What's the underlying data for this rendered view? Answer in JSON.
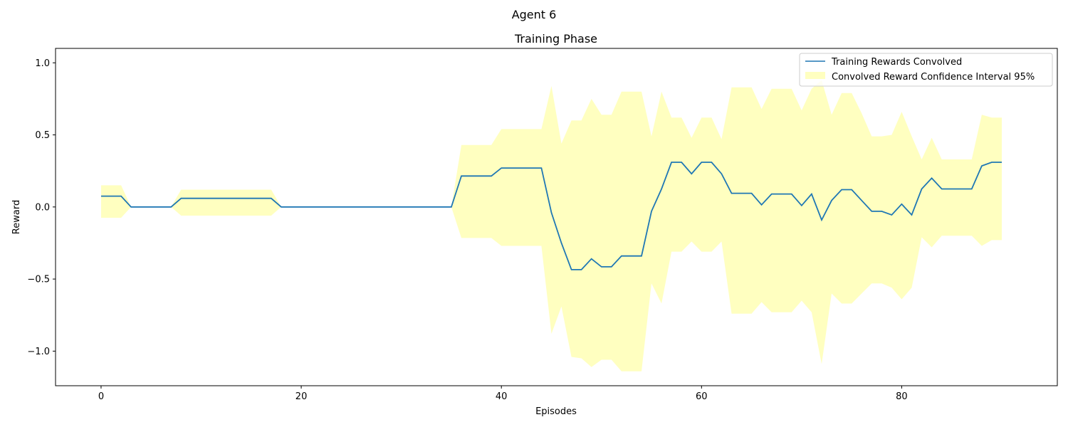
{
  "figure": {
    "suptitle": "Agent 6"
  },
  "chart_data": {
    "type": "line",
    "title": "Training Phase",
    "xlabel": "Episodes",
    "ylabel": "Reward",
    "xlim": [
      -4.55,
      95.55
    ],
    "ylim": [
      -1.24,
      1.1
    ],
    "xticks": [
      0,
      20,
      40,
      60,
      80
    ],
    "xtick_labels": [
      "0",
      "20",
      "40",
      "60",
      "80"
    ],
    "yticks": [
      -1.0,
      -0.5,
      0.0,
      0.5,
      1.0
    ],
    "ytick_labels": [
      "−1.0",
      "−0.5",
      "0.0",
      "0.5",
      "1.0"
    ],
    "grid": false,
    "legend_position": "top-right",
    "legend": [
      "Training Rewards Convolved",
      "Convolved Reward Confidence Interval 95%"
    ],
    "colors": {
      "line": "#1f77b4",
      "band": "#ffffc0"
    },
    "x": [
      0,
      1,
      2,
      3,
      4,
      5,
      6,
      7,
      8,
      9,
      10,
      11,
      12,
      13,
      14,
      15,
      16,
      17,
      18,
      19,
      20,
      21,
      22,
      23,
      24,
      25,
      26,
      27,
      28,
      29,
      30,
      31,
      32,
      33,
      34,
      35,
      36,
      37,
      38,
      39,
      40,
      41,
      42,
      43,
      44,
      45,
      46,
      47,
      48,
      49,
      50,
      51,
      52,
      53,
      54,
      55,
      56,
      57,
      58,
      59,
      60,
      61,
      62,
      63,
      64,
      65,
      66,
      67,
      68,
      69,
      70,
      71,
      72,
      73,
      74,
      75,
      76,
      77,
      78,
      79,
      80,
      81,
      82,
      83,
      84,
      85,
      86,
      87,
      88,
      89,
      90
    ],
    "series": [
      {
        "name": "Training Rewards Convolved",
        "values": [
          0.075,
          0.075,
          0.075,
          0,
          0,
          0,
          0,
          0,
          0.06,
          0.06,
          0.06,
          0.06,
          0.06,
          0.06,
          0.06,
          0.06,
          0.06,
          0.06,
          0,
          0,
          0,
          0,
          0,
          0,
          0,
          0,
          0,
          0,
          0,
          0,
          0,
          0,
          0,
          0,
          0,
          0,
          0.215,
          0.215,
          0.215,
          0.215,
          0.27,
          0.27,
          0.27,
          0.27,
          0.27,
          -0.04,
          -0.25,
          -0.435,
          -0.435,
          -0.36,
          -0.415,
          -0.415,
          -0.34,
          -0.34,
          -0.34,
          -0.03,
          0.125,
          0.31,
          0.31,
          0.23,
          0.31,
          0.31,
          0.23,
          0.095,
          0.095,
          0.095,
          0.015,
          0.09,
          0.09,
          0.09,
          0.01,
          0.09,
          -0.09,
          0.045,
          0.12,
          0.12,
          0.045,
          -0.03,
          -0.03,
          -0.055,
          0.02,
          -0.055,
          0.125,
          0.2,
          0.125,
          0.125,
          0.125,
          0.125,
          0.285,
          0.31,
          0.31
        ]
      }
    ],
    "band": {
      "name": "Convolved Reward Confidence Interval 95%",
      "upper": [
        0.15,
        0.15,
        0.15,
        0,
        0,
        0,
        0,
        0,
        0.12,
        0.12,
        0.12,
        0.12,
        0.12,
        0.12,
        0.12,
        0.12,
        0.12,
        0.12,
        0,
        0,
        0,
        0,
        0,
        0,
        0,
        0,
        0,
        0,
        0,
        0,
        0,
        0,
        0,
        0,
        0,
        0,
        0.43,
        0.43,
        0.43,
        0.43,
        0.54,
        0.54,
        0.54,
        0.54,
        0.54,
        0.84,
        0.44,
        0.6,
        0.6,
        0.75,
        0.64,
        0.64,
        0.8,
        0.8,
        0.8,
        0.49,
        0.8,
        0.62,
        0.62,
        0.48,
        0.62,
        0.62,
        0.47,
        0.83,
        0.83,
        0.83,
        0.68,
        0.82,
        0.82,
        0.82,
        0.67,
        0.82,
        0.88,
        0.64,
        0.79,
        0.79,
        0.65,
        0.49,
        0.49,
        0.5,
        0.66,
        0.49,
        0.33,
        0.48,
        0.33,
        0.33,
        0.33,
        0.33,
        0.64,
        0.62,
        0.62
      ],
      "lower": [
        -0.075,
        -0.075,
        -0.075,
        0,
        0,
        0,
        0,
        0,
        -0.06,
        -0.06,
        -0.06,
        -0.06,
        -0.06,
        -0.06,
        -0.06,
        -0.06,
        -0.06,
        -0.06,
        0,
        0,
        0,
        0,
        0,
        0,
        0,
        0,
        0,
        0,
        0,
        0,
        0,
        0,
        0,
        0,
        0,
        0,
        -0.215,
        -0.215,
        -0.215,
        -0.215,
        -0.27,
        -0.27,
        -0.27,
        -0.27,
        -0.27,
        -0.88,
        -0.69,
        -1.04,
        -1.05,
        -1.11,
        -1.06,
        -1.06,
        -1.14,
        -1.14,
        -1.14,
        -0.53,
        -0.67,
        -0.31,
        -0.31,
        -0.24,
        -0.31,
        -0.31,
        -0.24,
        -0.74,
        -0.74,
        -0.74,
        -0.66,
        -0.73,
        -0.73,
        -0.73,
        -0.65,
        -0.73,
        -1.09,
        -0.6,
        -0.67,
        -0.67,
        -0.6,
        -0.53,
        -0.53,
        -0.56,
        -0.64,
        -0.56,
        -0.21,
        -0.28,
        -0.2,
        -0.2,
        -0.2,
        -0.2,
        -0.27,
        -0.23,
        -0.23
      ]
    }
  }
}
